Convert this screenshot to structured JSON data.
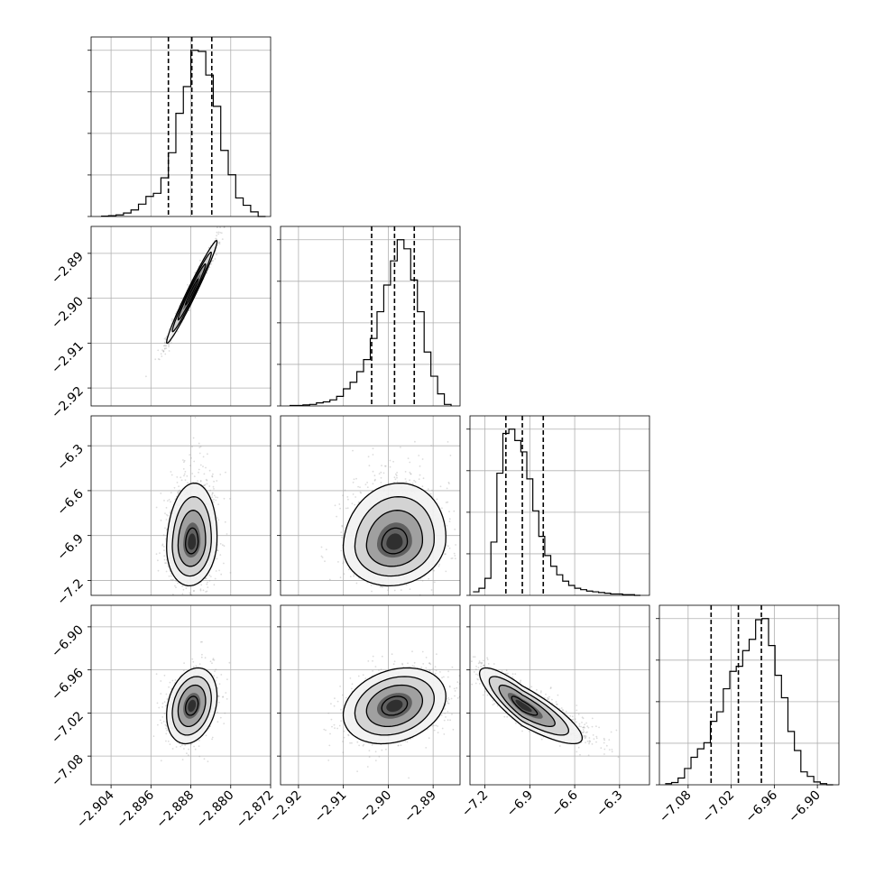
{
  "chart_data": {
    "type": "corner",
    "grid": true,
    "parameters": [
      {
        "name": "",
        "range": [
          -2.908,
          -2.872
        ],
        "ticks": [
          -2.904,
          -2.896,
          -2.888,
          -2.88,
          -2.872
        ],
        "tick_labels": [
          "−2.904",
          "−2.896",
          "−2.888",
          "−2.880",
          "−2.872"
        ],
        "quantiles": [
          -2.8925,
          -2.8878,
          -2.8838
        ]
      },
      {
        "name": "",
        "range": [
          -2.924,
          -2.884
        ],
        "ticks": [
          -2.92,
          -2.91,
          -2.9,
          -2.89
        ],
        "tick_labels": [
          "−2.92",
          "−2.91",
          "−2.90",
          "−2.89"
        ],
        "quantiles": [
          -2.9037,
          -2.8986,
          -2.8942
        ]
      },
      {
        "name": "",
        "range": [
          -7.3,
          -6.1
        ],
        "ticks": [
          -7.2,
          -6.9,
          -6.6,
          -6.3
        ],
        "tick_labels": [
          "−7.2",
          "−6.9",
          "−6.6",
          "−6.3"
        ],
        "quantiles": [
          -7.06,
          -6.95,
          -6.81
        ]
      },
      {
        "name": "",
        "range": [
          -7.12,
          -6.87
        ],
        "ticks": [
          -7.08,
          -7.02,
          -6.96,
          -6.9
        ],
        "tick_labels": [
          "−7.08",
          "−7.02",
          "−6.96",
          "−6.90"
        ],
        "quantiles": [
          -7.048,
          -7.01,
          -6.978
        ]
      }
    ],
    "histograms": [
      {
        "param": 0,
        "bin_edges": [
          -2.906,
          -2.9045,
          -2.903,
          -2.9015,
          -2.9,
          -2.8985,
          -2.897,
          -2.8955,
          -2.894,
          -2.8925,
          -2.891,
          -2.8895,
          -2.888,
          -2.8865,
          -2.885,
          -2.8835,
          -2.882,
          -2.8805,
          -2.879,
          -2.8775,
          -2.876,
          -2.8745,
          -2.873
        ],
        "counts": [
          1,
          2,
          4,
          9,
          17,
          32,
          52,
          60,
          100,
          165,
          267,
          336,
          430,
          427,
          366,
          285,
          171,
          108,
          48,
          29,
          12,
          0
        ]
      },
      {
        "param": 1,
        "bin_edges": [
          -2.922,
          -2.9205,
          -2.919,
          -2.9175,
          -2.916,
          -2.9145,
          -2.913,
          -2.9115,
          -2.91,
          -2.9085,
          -2.907,
          -2.9055,
          -2.904,
          -2.9025,
          -2.901,
          -2.8995,
          -2.898,
          -2.8965,
          -2.895,
          -2.8935,
          -2.892,
          -2.8905,
          -2.889,
          -2.8875,
          -2.886
        ],
        "counts": [
          1,
          1,
          2,
          3,
          6,
          8,
          12,
          19,
          34,
          47,
          68,
          92,
          134,
          187,
          240,
          288,
          330,
          312,
          250,
          187,
          107,
          59,
          24,
          3
        ]
      },
      {
        "param": 2,
        "bin_edges": [
          -7.28,
          -7.24,
          -7.2,
          -7.16,
          -7.12,
          -7.08,
          -7.04,
          -7.0,
          -6.96,
          -6.92,
          -6.88,
          -6.84,
          -6.8,
          -6.76,
          -6.72,
          -6.68,
          -6.64,
          -6.6,
          -6.56,
          -6.52,
          -6.48,
          -6.44,
          -6.4,
          -6.36,
          -6.32,
          -6.28,
          -6.24,
          -6.2,
          -6.16
        ],
        "counts": [
          5,
          10,
          24,
          75,
          172,
          228,
          234,
          218,
          202,
          164,
          119,
          83,
          56,
          41,
          29,
          20,
          14,
          10,
          8,
          6,
          5,
          4,
          3,
          2,
          2,
          1,
          1,
          0
        ]
      },
      {
        "param": 3,
        "bin_edges": [
          -7.112,
          -7.103,
          -7.094,
          -7.085,
          -7.076,
          -7.067,
          -7.058,
          -7.049,
          -7.04,
          -7.031,
          -7.022,
          -7.013,
          -7.004,
          -6.995,
          -6.986,
          -6.977,
          -6.968,
          -6.959,
          -6.95,
          -6.941,
          -6.932,
          -6.923,
          -6.914,
          -6.905,
          -6.896,
          -6.887,
          -6.878
        ],
        "counts": [
          2,
          4,
          12,
          29,
          49,
          64,
          75,
          113,
          130,
          171,
          202,
          211,
          239,
          259,
          294,
          296,
          248,
          195,
          155,
          95,
          61,
          23,
          15,
          5,
          2,
          0
        ]
      }
    ],
    "density_panels": [
      {
        "x_param": 0,
        "y_param": 1,
        "center": [
          -2.8878,
          -2.8986
        ],
        "sd": [
          0.0023,
          0.0052
        ],
        "correlation": 0.98
      },
      {
        "x_param": 0,
        "y_param": 2,
        "center": [
          -2.8878,
          -6.95
        ],
        "sd": [
          0.0023,
          0.13
        ],
        "correlation": 0.1
      },
      {
        "x_param": 1,
        "y_param": 2,
        "center": [
          -2.8986,
          -6.95
        ],
        "sd": [
          0.0052,
          0.13
        ],
        "correlation": 0.1
      },
      {
        "x_param": 0,
        "y_param": 3,
        "center": [
          -2.8878,
          -7.01
        ],
        "sd": [
          0.0023,
          0.024
        ],
        "correlation": 0.25
      },
      {
        "x_param": 1,
        "y_param": 3,
        "center": [
          -2.8986,
          -7.01
        ],
        "sd": [
          0.0052,
          0.024
        ],
        "correlation": 0.25
      },
      {
        "x_param": 2,
        "y_param": 3,
        "center": [
          -6.95,
          -7.01
        ],
        "sd": [
          0.13,
          0.024
        ],
        "correlation": -0.85
      }
    ],
    "contour_levels": [
      0.118,
      0.393,
      0.675,
      0.865
    ],
    "colors": {
      "line": "#000000",
      "grid": "#b0b0b0",
      "density": "#4d4d4d",
      "points": "#9a9a9a"
    }
  }
}
